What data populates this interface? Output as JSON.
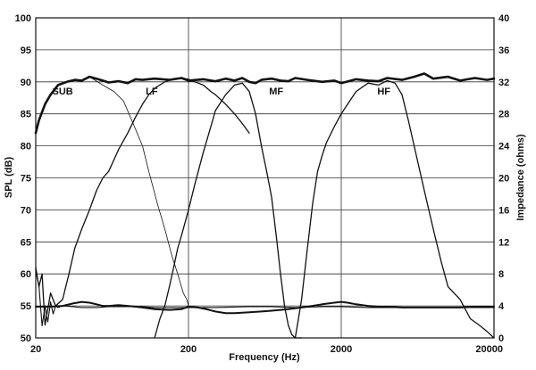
{
  "chart_data": {
    "type": "line",
    "x_scale": "log",
    "xlabel": "Frequency (Hz)",
    "ylabel": "SPL (dB)",
    "y2label": "Impedance (ohms)",
    "xlim": [
      20,
      20000
    ],
    "ylim": [
      50,
      100
    ],
    "y2lim": [
      0,
      40
    ],
    "x_ticks": [
      20,
      200,
      2000,
      20000
    ],
    "x_tick_labels": [
      "20",
      "200",
      "2000",
      "20000"
    ],
    "y_ticks": [
      50,
      55,
      60,
      65,
      70,
      75,
      80,
      85,
      90,
      95,
      100
    ],
    "y_tick_labels": [
      "50",
      "55",
      "60",
      "65",
      "70",
      "75",
      "80",
      "85",
      "90",
      "95",
      "100"
    ],
    "y2_ticks": [
      0,
      4,
      8,
      12,
      16,
      20,
      24,
      28,
      32,
      36,
      40
    ],
    "y2_tick_labels": [
      "0",
      "4",
      "8",
      "12",
      "16",
      "20",
      "24",
      "28",
      "32",
      "36",
      "40"
    ],
    "grid": true,
    "band_labels": [
      {
        "text": "SUB",
        "x": 30,
        "y": 88
      },
      {
        "text": "LF",
        "x": 115,
        "y": 88
      },
      {
        "text": "MF",
        "x": 750,
        "y": 88
      },
      {
        "text": "HF",
        "x": 3800,
        "y": 88
      }
    ],
    "series": [
      {
        "axis": "left",
        "stroke": 2.6,
        "x": [
          20,
          21,
          23,
          25,
          28,
          32,
          36,
          40,
          45,
          50,
          55,
          60,
          70,
          80,
          90,
          100,
          120,
          150,
          180,
          200,
          250,
          300,
          350,
          400,
          450,
          500,
          550,
          600,
          700,
          800,
          900,
          1000,
          1200,
          1500,
          1800,
          2000,
          2500,
          3000,
          3500,
          4000,
          5000,
          6000,
          7000,
          8000,
          10000,
          12000,
          15000,
          18000,
          20000
        ],
        "y": [
          82,
          84,
          86.5,
          88,
          89.5,
          90,
          90.3,
          90.2,
          90.8,
          90.5,
          90.2,
          89.9,
          90.1,
          89.8,
          90.4,
          90.3,
          90.5,
          90.3,
          90.6,
          90.2,
          90.4,
          90.1,
          90.5,
          90.2,
          90.6,
          90,
          89.8,
          90.3,
          90.5,
          90.2,
          90.1,
          90.6,
          90.3,
          90,
          90.2,
          89.8,
          90.4,
          90.2,
          90.1,
          90.6,
          90.3,
          90.8,
          91.3,
          90.5,
          90.8,
          90.2,
          90.6,
          90.3,
          90.5
        ]
      },
      {
        "axis": "left",
        "stroke": 0.8,
        "x": [
          45,
          55,
          65,
          75,
          85,
          100,
          110,
          125,
          140,
          155,
          170,
          185,
          195,
          200
        ],
        "y": [
          90.8,
          89.5,
          88.5,
          87,
          84,
          80,
          76,
          71,
          67,
          63,
          60,
          57,
          56,
          55
        ]
      },
      {
        "axis": "left",
        "stroke": 1.3,
        "x": [
          20,
          21,
          22,
          23,
          25,
          27,
          30,
          33,
          36,
          40,
          45,
          50,
          55,
          60,
          70,
          80,
          90,
          100,
          110,
          120,
          140,
          160,
          180,
          200,
          220,
          250,
          280,
          300,
          350,
          400,
          450,
          500
        ],
        "y": [
          61,
          58,
          60,
          52,
          57,
          55,
          56,
          60,
          64,
          67,
          70,
          73,
          75,
          76,
          79.5,
          82,
          84.5,
          86.5,
          88,
          89,
          90,
          90.5,
          90.6,
          90.4,
          90,
          89.5,
          88.5,
          88,
          86.5,
          85,
          83.5,
          82
        ]
      },
      {
        "axis": "left",
        "stroke": 1.3,
        "x": [
          120,
          130,
          140,
          150,
          160,
          170,
          180,
          200,
          220,
          250,
          280,
          300,
          350,
          400,
          450,
          500,
          550,
          600,
          650,
          700,
          750,
          800,
          850,
          900,
          950,
          1000,
          1100
        ],
        "y": [
          50,
          53,
          55,
          58,
          61,
          64,
          66,
          70,
          74,
          79,
          83,
          85.5,
          88,
          89.5,
          89.8,
          88.5,
          85,
          80,
          76,
          72,
          66,
          60,
          55,
          52,
          50.5,
          50,
          50
        ]
      },
      {
        "axis": "left",
        "stroke": 1.3,
        "x": [
          1000,
          1050,
          1100,
          1200,
          1300,
          1400,
          1500,
          1600,
          1800,
          2000,
          2200,
          2500,
          3000,
          3500,
          4000,
          4500,
          5000,
          5500,
          6000,
          7000,
          8000,
          9000,
          10000,
          12000,
          14000,
          16000,
          18000,
          20000
        ],
        "y": [
          50,
          53,
          56,
          64,
          71,
          76,
          78.5,
          80.5,
          83,
          85,
          86.5,
          88.5,
          89.8,
          89.5,
          90.2,
          89.8,
          88,
          84,
          80,
          73,
          67,
          62,
          58,
          56,
          53,
          52,
          51,
          50
        ]
      },
      {
        "axis": "right",
        "stroke": 2,
        "x": [
          20,
          25,
          30,
          35,
          40,
          45,
          50,
          55,
          60,
          70,
          80,
          90,
          100,
          120,
          150,
          180,
          200,
          230,
          260,
          300,
          350,
          400,
          500,
          600,
          700,
          800,
          900,
          1000,
          1200,
          1500,
          1800,
          2000,
          2200,
          2500,
          3000,
          3500,
          4000,
          5000,
          6000,
          8000,
          10000,
          12000,
          15000,
          18000,
          20000
        ],
        "y": [
          3.9,
          3.9,
          4.0,
          4.3,
          4.5,
          4.4,
          4.2,
          4.0,
          4.0,
          4.1,
          4.0,
          3.9,
          3.8,
          3.6,
          3.5,
          3.6,
          3.9,
          3.8,
          3.6,
          3.3,
          3.1,
          3.1,
          3.2,
          3.3,
          3.4,
          3.5,
          3.6,
          3.7,
          3.9,
          4.2,
          4.4,
          4.5,
          4.4,
          4.2,
          4.0,
          3.9,
          3.9,
          3.8,
          3.8,
          3.8,
          3.8,
          3.8,
          3.9,
          3.9,
          3.9
        ]
      },
      {
        "axis": "right",
        "stroke": 1.1,
        "x": [
          20,
          21,
          22,
          23,
          24,
          25,
          26,
          27,
          28,
          30,
          35,
          40,
          50,
          60,
          80,
          100,
          120,
          150,
          200,
          300,
          500,
          700,
          1000,
          1500,
          2000,
          3000,
          5000,
          8000,
          10000,
          14000,
          20000
        ],
        "y": [
          8.4,
          6.5,
          1.5,
          4.0,
          2.0,
          4.5,
          3.0,
          4.0,
          3.8,
          4.0,
          3.9,
          3.8,
          3.8,
          3.9,
          3.9,
          3.9,
          3.8,
          3.8,
          3.8,
          3.8,
          3.9,
          3.9,
          3.8,
          3.9,
          3.9,
          3.8,
          3.8,
          3.8,
          3.8,
          3.8,
          3.8
        ]
      }
    ]
  }
}
